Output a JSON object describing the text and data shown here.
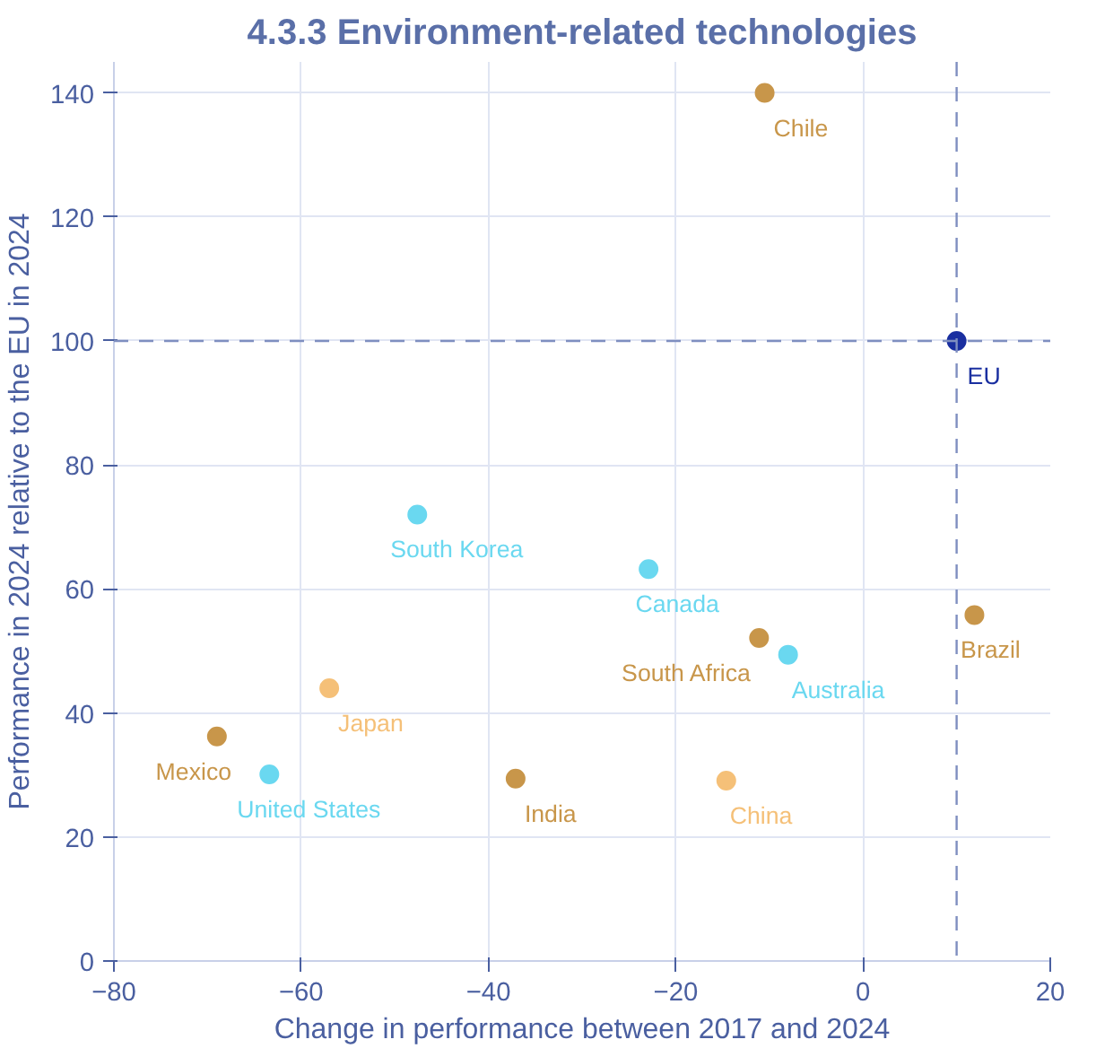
{
  "chart_data": {
    "type": "scatter",
    "title": "4.3.3 Environment-related technologies",
    "xlabel": "Change in performance between 2017 and 2024",
    "ylabel": "Performance in 2024 relative to the EU in 2024",
    "series": [
      {
        "name": "Chile",
        "color": "#c8964a",
        "x": [
          -10.5
        ],
        "values": [
          140
        ]
      },
      {
        "name": "EU",
        "color": "#1a2fa0",
        "x": [
          10
        ],
        "values": [
          100
        ]
      },
      {
        "name": "South Korea",
        "color": "#6ad8f0",
        "x": [
          -47.6
        ],
        "values": [
          72
        ]
      },
      {
        "name": "Canada",
        "color": "#6ad8f0",
        "x": [
          -22.9
        ],
        "values": [
          63.2
        ]
      },
      {
        "name": "South Africa",
        "color": "#c8964a",
        "x": [
          -11.1
        ],
        "values": [
          52.1
        ]
      },
      {
        "name": "Australia",
        "color": "#6ad8f0",
        "x": [
          -8
        ],
        "values": [
          49.4
        ]
      },
      {
        "name": "Brazil",
        "color": "#c8964a",
        "x": [
          11.9
        ],
        "values": [
          55.8
        ]
      },
      {
        "name": "Japan",
        "color": "#f5c078",
        "x": [
          -57
        ],
        "values": [
          44
        ]
      },
      {
        "name": "Mexico",
        "color": "#c8964a",
        "x": [
          -69
        ],
        "values": [
          36.2
        ]
      },
      {
        "name": "United States",
        "color": "#6ad8f0",
        "x": [
          -63.4
        ],
        "values": [
          30.1
        ]
      },
      {
        "name": "India",
        "color": "#c8964a",
        "x": [
          -37.1
        ],
        "values": [
          29.4
        ]
      },
      {
        "name": "China",
        "color": "#f5c078",
        "x": [
          -14.6
        ],
        "values": [
          29.1
        ]
      }
    ],
    "xlim": [
      -80,
      20
    ],
    "xticks": [
      -80,
      -60,
      -40,
      -20,
      0,
      20
    ],
    "ylim": [
      0,
      145
    ],
    "yticks": [
      0,
      20,
      40,
      60,
      80,
      100,
      120,
      140
    ],
    "ref_lines": [
      {
        "axis": "x",
        "value": 10,
        "color": "#7f8fc0",
        "line_style": "dashed"
      },
      {
        "axis": "y",
        "value": 100,
        "color": "#7f8fc0",
        "line_style": "dashed"
      }
    ],
    "grid": true,
    "legend": false,
    "marker": "circle"
  }
}
